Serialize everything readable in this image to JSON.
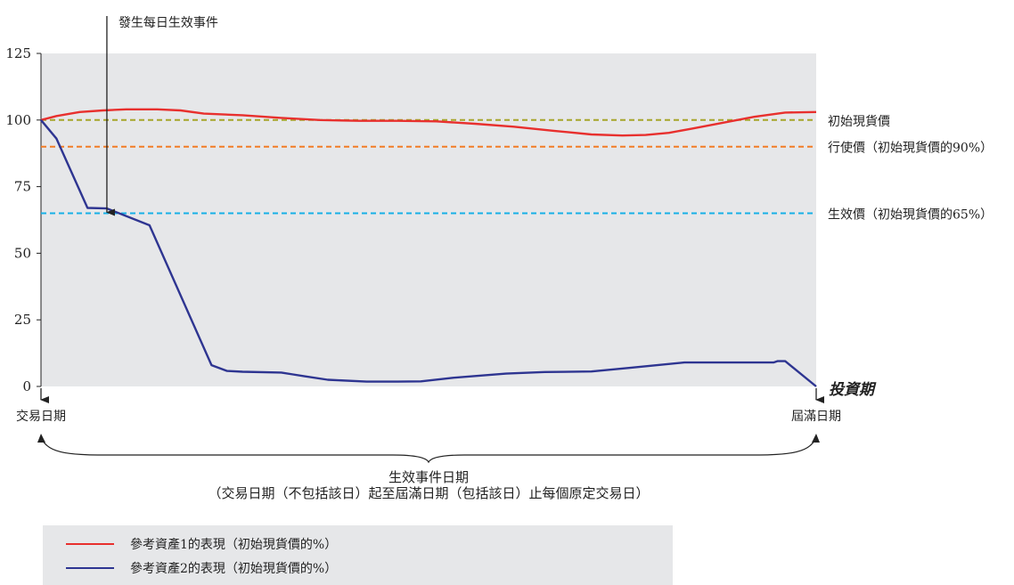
{
  "chart_data": {
    "type": "line",
    "title": "",
    "xlabel": "投資期",
    "ylabel": "",
    "ylim": [
      0,
      125
    ],
    "yticks": [
      0,
      25,
      50,
      75,
      100,
      125
    ],
    "xlim": [
      0,
      100
    ],
    "grid": false,
    "series": [
      {
        "name": "參考資產1的表現（初始現貨價的%）",
        "color": "#e8302e",
        "x": [
          0,
          2,
          5,
          8,
          11,
          15,
          18,
          21,
          26,
          31,
          36,
          41,
          46,
          51,
          56,
          61,
          66,
          71,
          75,
          78,
          81,
          84,
          88,
          92,
          96,
          100
        ],
        "y": [
          100,
          101.5,
          103,
          103.6,
          104,
          104,
          103.6,
          102.4,
          101.8,
          100.8,
          100,
          99.7,
          99.7,
          99.5,
          98.6,
          97.5,
          96,
          94.6,
          94.2,
          94.4,
          95.2,
          96.8,
          99,
          101.2,
          102.8,
          103
        ]
      },
      {
        "name": "參考資產2的表現（初始現貨價的%）",
        "color": "#2e3591",
        "x": [
          0,
          2,
          6,
          8.5,
          14,
          22,
          24,
          26,
          31,
          32.5,
          34,
          37,
          42,
          46,
          49,
          53,
          60,
          65,
          71,
          76,
          83,
          88,
          94.5,
          95,
          96,
          100
        ],
        "y": [
          100,
          93,
          67,
          66.8,
          60.5,
          8,
          5.8,
          5.5,
          5.2,
          4.5,
          3.8,
          2.5,
          1.8,
          1.8,
          1.9,
          3.2,
          4.8,
          5.4,
          5.6,
          7,
          9,
          9,
          9,
          9.5,
          9.5,
          0
        ]
      }
    ],
    "reference_lines": [
      {
        "label": "初始現貨價",
        "value": 100,
        "color": "#a6a52a"
      },
      {
        "label": "行使價（初始現貨價的90%）",
        "value": 90,
        "color": "#f27c25"
      },
      {
        "label": "生效價（初始現貨價的65%）",
        "value": 65,
        "color": "#17b0e6"
      }
    ],
    "annotations": {
      "event_label": "發生每日生效事件",
      "event_x": 8.5,
      "event_y": 65,
      "start_label": "交易日期",
      "end_label": "屆滿日期",
      "brace_title": "生效事件日期",
      "brace_subtitle": "（交易日期（不包括該日）起至屆滿日期（包括該日）止每個原定交易日）"
    },
    "legend_position": "bottom-left"
  }
}
